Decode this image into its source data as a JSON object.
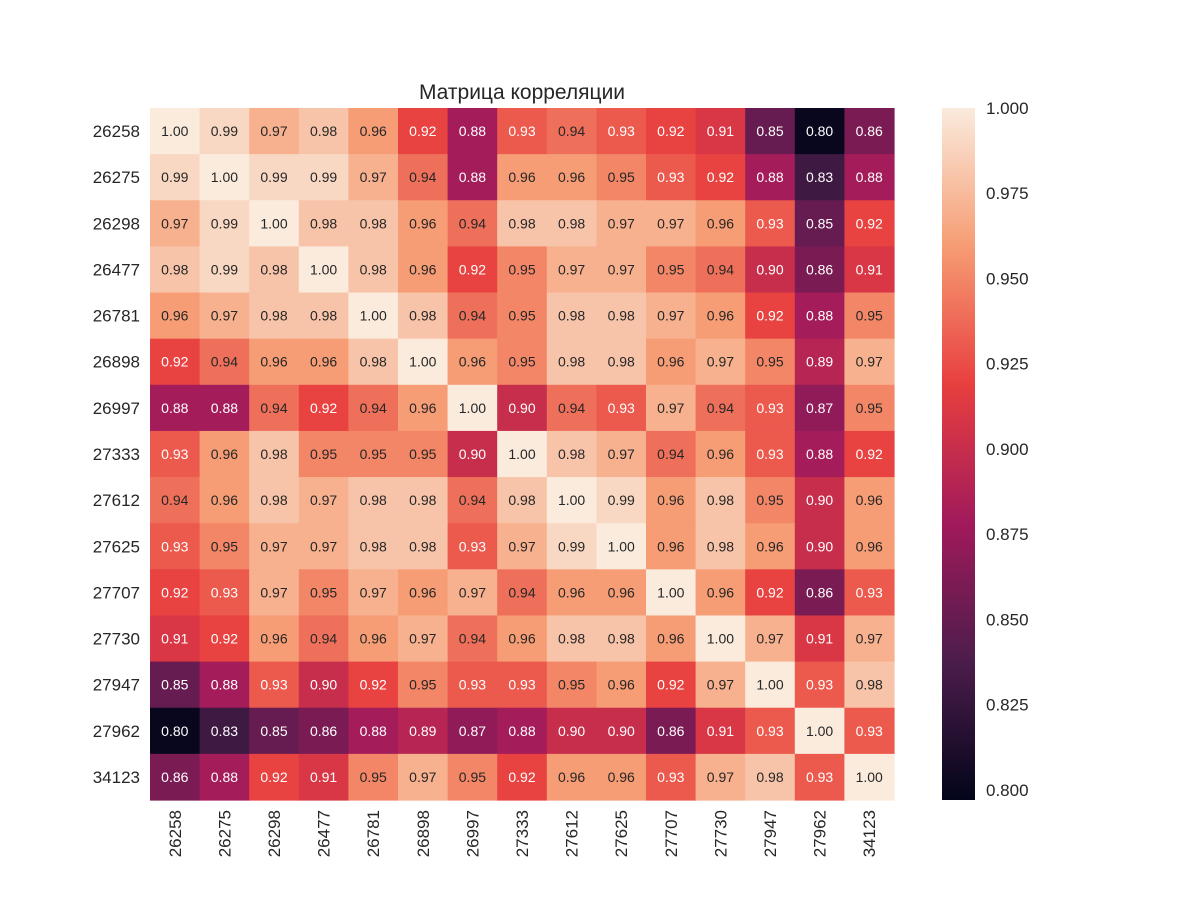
{
  "chart_data": {
    "type": "heatmap",
    "title": "Матрица корреляции",
    "xlabel": "",
    "ylabel": "",
    "labels": [
      "26258",
      "26275",
      "26298",
      "26477",
      "26781",
      "26898",
      "26997",
      "27333",
      "27612",
      "27625",
      "27707",
      "27730",
      "27947",
      "27962",
      "34123"
    ],
    "values": [
      [
        1.0,
        0.99,
        0.97,
        0.98,
        0.96,
        0.92,
        0.88,
        0.93,
        0.94,
        0.93,
        0.92,
        0.91,
        0.85,
        0.8,
        0.86
      ],
      [
        0.99,
        1.0,
        0.99,
        0.99,
        0.97,
        0.94,
        0.88,
        0.96,
        0.96,
        0.95,
        0.93,
        0.92,
        0.88,
        0.83,
        0.88
      ],
      [
        0.97,
        0.99,
        1.0,
        0.98,
        0.98,
        0.96,
        0.94,
        0.98,
        0.98,
        0.97,
        0.97,
        0.96,
        0.93,
        0.85,
        0.92
      ],
      [
        0.98,
        0.99,
        0.98,
        1.0,
        0.98,
        0.96,
        0.92,
        0.95,
        0.97,
        0.97,
        0.95,
        0.94,
        0.9,
        0.86,
        0.91
      ],
      [
        0.96,
        0.97,
        0.98,
        0.98,
        1.0,
        0.98,
        0.94,
        0.95,
        0.98,
        0.98,
        0.97,
        0.96,
        0.92,
        0.88,
        0.95
      ],
      [
        0.92,
        0.94,
        0.96,
        0.96,
        0.98,
        1.0,
        0.96,
        0.95,
        0.98,
        0.98,
        0.96,
        0.97,
        0.95,
        0.89,
        0.97
      ],
      [
        0.88,
        0.88,
        0.94,
        0.92,
        0.94,
        0.96,
        1.0,
        0.9,
        0.94,
        0.93,
        0.97,
        0.94,
        0.93,
        0.87,
        0.95
      ],
      [
        0.93,
        0.96,
        0.98,
        0.95,
        0.95,
        0.95,
        0.9,
        1.0,
        0.98,
        0.97,
        0.94,
        0.96,
        0.93,
        0.88,
        0.92
      ],
      [
        0.94,
        0.96,
        0.98,
        0.97,
        0.98,
        0.98,
        0.94,
        0.98,
        1.0,
        0.99,
        0.96,
        0.98,
        0.95,
        0.9,
        0.96
      ],
      [
        0.93,
        0.95,
        0.97,
        0.97,
        0.98,
        0.98,
        0.93,
        0.97,
        0.99,
        1.0,
        0.96,
        0.98,
        0.96,
        0.9,
        0.96
      ],
      [
        0.92,
        0.93,
        0.97,
        0.95,
        0.97,
        0.96,
        0.97,
        0.94,
        0.96,
        0.96,
        1.0,
        0.96,
        0.92,
        0.86,
        0.93
      ],
      [
        0.91,
        0.92,
        0.96,
        0.94,
        0.96,
        0.97,
        0.94,
        0.96,
        0.98,
        0.98,
        0.96,
        1.0,
        0.97,
        0.91,
        0.97
      ],
      [
        0.85,
        0.88,
        0.93,
        0.9,
        0.92,
        0.95,
        0.93,
        0.93,
        0.95,
        0.96,
        0.92,
        0.97,
        1.0,
        0.93,
        0.98
      ],
      [
        0.8,
        0.83,
        0.85,
        0.86,
        0.88,
        0.89,
        0.87,
        0.88,
        0.9,
        0.9,
        0.86,
        0.91,
        0.93,
        1.0,
        0.93
      ],
      [
        0.86,
        0.88,
        0.92,
        0.91,
        0.95,
        0.97,
        0.95,
        0.92,
        0.96,
        0.96,
        0.93,
        0.97,
        0.98,
        0.93,
        1.0
      ]
    ],
    "vmin": 0.797,
    "vmax": 1.0,
    "colorbar_ticks": [
      "0.800",
      "0.825",
      "0.850",
      "0.875",
      "0.900",
      "0.925",
      "0.950",
      "0.975",
      "1.000"
    ],
    "value_format": "2 decimals",
    "colormap": "rocket",
    "colormap_stops": [
      "#03051a",
      "#4c1d4b",
      "#a11a5b",
      "#e83f3f",
      "#f69c73",
      "#faebdd"
    ],
    "legend": "colorbar right"
  }
}
